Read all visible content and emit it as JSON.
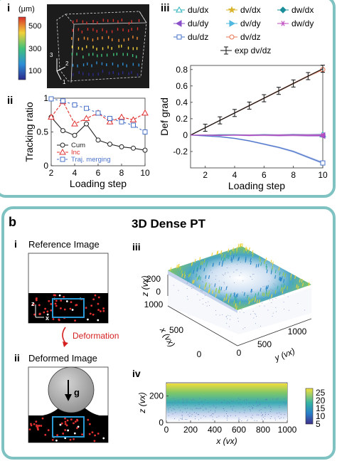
{
  "panel_a": {
    "sub_i": "i",
    "sub_ii": "ii",
    "sub_iii": "iii",
    "colorbar": {
      "unit": "(μm)",
      "ticks": [
        "500",
        "300",
        "100"
      ]
    },
    "axis_triad": {
      "a": "3",
      "b": "2",
      "c": "1"
    }
  },
  "panel_b": {
    "letter": "b",
    "title": "3D Dense PT",
    "sub_i": "i",
    "sub_ii": "ii",
    "sub_iii": "iii",
    "sub_iv": "iv",
    "reference_label": "Reference Image",
    "deformed_label": "Deformed Image",
    "deformation_label": "Deformation",
    "gravity_label": "g",
    "axis_z": "z",
    "axis_x": "x"
  },
  "colors": {
    "teal_frame": "#5fb3b3",
    "inc_red": "#e03030",
    "traj_blue": "#4a72c9",
    "cum_black": "#222222",
    "highlight_box": "#2a9ad6",
    "deform_arrow": "#d42020"
  },
  "chart_data": [
    {
      "id": "tracking-ratio",
      "type": "line",
      "xlabel": "Loading step",
      "ylabel": "Tracking ratio",
      "xlim": [
        2,
        10
      ],
      "ylim": [
        0,
        1
      ],
      "xticks": [
        "2",
        "4",
        "6",
        "8",
        "10"
      ],
      "yticks": [
        "0",
        "0.5",
        "1"
      ],
      "x": [
        2,
        3,
        4,
        5,
        6,
        7,
        8,
        9,
        10
      ],
      "series": [
        {
          "name": "Cum",
          "color": "#222222",
          "marker": "circle",
          "dash": "",
          "values": [
            0.72,
            0.52,
            0.45,
            0.62,
            0.38,
            0.32,
            0.28,
            0.26,
            0.23
          ]
        },
        {
          "name": "Inc",
          "color": "#e03030",
          "marker": "triangle",
          "dash": "4,2",
          "values": [
            0.72,
            0.95,
            0.62,
            0.7,
            0.78,
            0.65,
            0.72,
            0.68,
            0.78
          ]
        },
        {
          "name": "Traj. merging",
          "color": "#4a72c9",
          "marker": "square",
          "dash": "3,3",
          "values": [
            0.99,
            0.96,
            0.9,
            0.85,
            0.78,
            0.7,
            0.65,
            0.6,
            0.5
          ]
        }
      ]
    },
    {
      "id": "def-grad",
      "type": "line",
      "xlabel": "Loading step",
      "ylabel": "Def grad",
      "xlim": [
        1,
        10
      ],
      "ylim": [
        -0.4,
        0.85
      ],
      "xticks": [
        "2",
        "4",
        "6",
        "8",
        "10"
      ],
      "yticks": [
        "-0.2",
        "0",
        "0.2",
        "0.4",
        "0.6",
        "0.8"
      ],
      "legend": [
        {
          "name": "du/dx",
          "color": "#2bb0b8",
          "marker": "triangle-up"
        },
        {
          "name": "dv/dx",
          "color": "#d9b42a",
          "marker": "star"
        },
        {
          "name": "dw/dx",
          "color": "#1a8f9a",
          "marker": "diamond"
        },
        {
          "name": "du/dy",
          "color": "#8a4fc9",
          "marker": "triangle-left"
        },
        {
          "name": "dv/dy",
          "color": "#4fb8e0",
          "marker": "triangle-right"
        },
        {
          "name": "dw/dy",
          "color": "#c04fc0",
          "marker": "asterisk"
        },
        {
          "name": "du/dz",
          "color": "#4a72c9",
          "marker": "square"
        },
        {
          "name": "dv/dz",
          "color": "#e8734f",
          "marker": "circle"
        },
        {
          "name": "exp dv/dz",
          "color": "#111111",
          "marker": "errorbar"
        }
      ],
      "x": [
        1,
        2,
        3,
        4,
        5,
        6,
        7,
        8,
        9,
        10
      ],
      "series": [
        {
          "name": "dv/dz",
          "color": "#e8734f",
          "values": [
            0,
            0.09,
            0.18,
            0.27,
            0.36,
            0.45,
            0.54,
            0.63,
            0.72,
            0.8
          ]
        },
        {
          "name": "exp dv/dz",
          "color": "#111111",
          "values": [
            0,
            0.09,
            0.18,
            0.27,
            0.36,
            0.45,
            0.54,
            0.63,
            0.72,
            0.81
          ]
        },
        {
          "name": "du/dz",
          "color": "#4a72c9",
          "values": [
            0,
            -0.01,
            -0.02,
            -0.04,
            -0.07,
            -0.11,
            -0.15,
            -0.2,
            -0.27,
            -0.34
          ]
        },
        {
          "name": "du/dx",
          "color": "#2bb0b8",
          "values": [
            0,
            0,
            0.005,
            0.005,
            0,
            0.005,
            0,
            0.005,
            0,
            0.005
          ]
        },
        {
          "name": "du/dy",
          "color": "#8a4fc9",
          "values": [
            0,
            0,
            -0.005,
            0,
            -0.005,
            0,
            -0.005,
            0,
            -0.005,
            -0.005
          ]
        },
        {
          "name": "dw/dy",
          "color": "#c04fc0",
          "values": [
            0,
            0,
            0,
            0,
            0,
            0,
            0,
            0,
            0,
            0
          ]
        }
      ]
    },
    {
      "id": "dense-3d",
      "type": "scatter",
      "xlabel": "x (vx)",
      "ylabel": "y (vx)",
      "zlabel": "z (vx)",
      "xticks": [
        "1000",
        "500",
        "0"
      ],
      "yticks": [
        "0",
        "500",
        "1000"
      ],
      "zticks": [
        "200",
        "0"
      ]
    },
    {
      "id": "side-view",
      "type": "heatmap",
      "xlabel": "x (vx)",
      "ylabel": "z (vx)",
      "xlim": [
        0,
        1000
      ],
      "ylim": [
        0,
        300
      ],
      "xticks": [
        "0",
        "200",
        "400",
        "600",
        "800",
        "1000"
      ],
      "yticks": [
        "200",
        "0"
      ],
      "colorbar_ticks": [
        "25",
        "20",
        "15",
        "10",
        "5"
      ]
    }
  ]
}
